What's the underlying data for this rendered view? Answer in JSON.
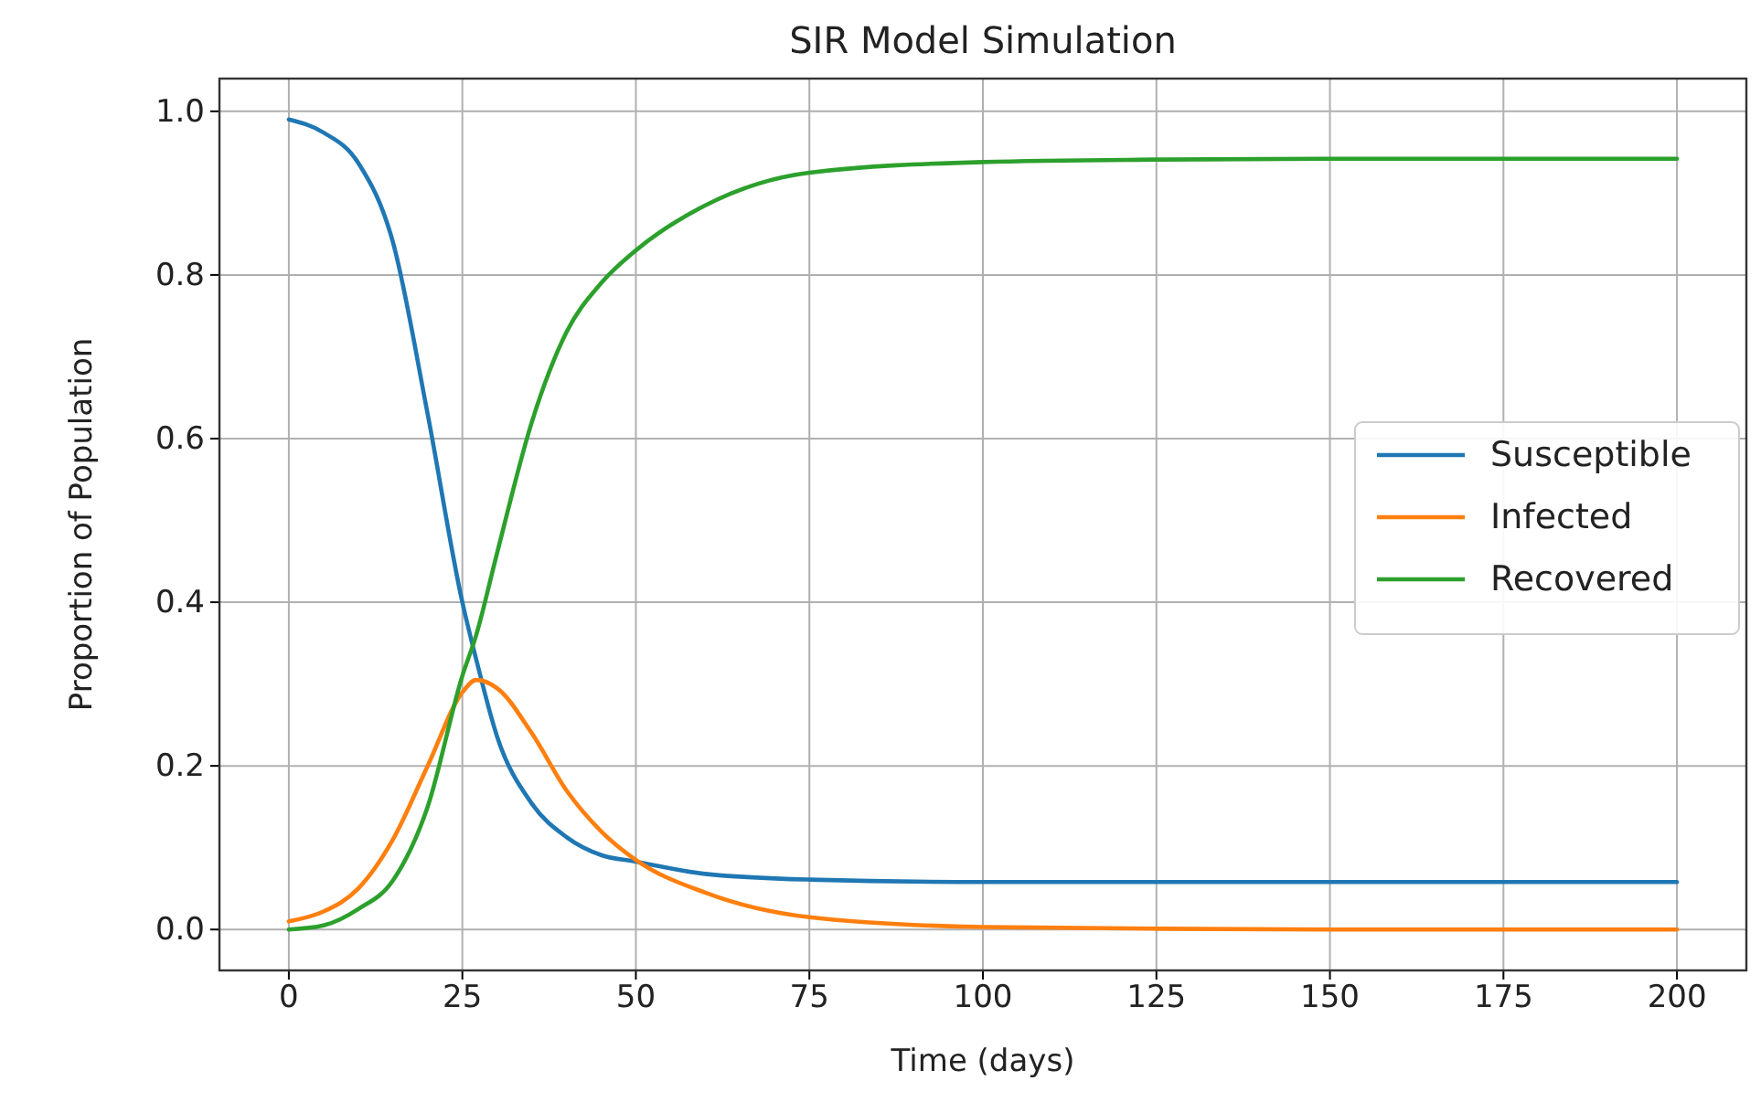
{
  "chart_data": {
    "type": "line",
    "title": "SIR Model Simulation",
    "xlabel": "Time (days)",
    "ylabel": "Proportion of Population",
    "x": [
      0,
      5,
      10,
      15,
      20,
      25,
      27,
      30,
      35,
      40,
      45,
      50,
      60,
      75,
      100,
      125,
      150,
      200
    ],
    "series": [
      {
        "name": "Susceptible",
        "color": "#1f77b4",
        "values": [
          0.99,
          0.974,
          0.937,
          0.84,
          0.63,
          0.4,
          0.33,
          0.236,
          0.154,
          0.113,
          0.091,
          0.083,
          0.068,
          0.061,
          0.058,
          0.058,
          0.058,
          0.058
        ]
      },
      {
        "name": "Infected",
        "color": "#ff7f0e",
        "values": [
          0.01,
          0.022,
          0.05,
          0.11,
          0.2,
          0.29,
          0.305,
          0.295,
          0.24,
          0.17,
          0.12,
          0.085,
          0.045,
          0.015,
          0.003,
          0.001,
          0,
          0
        ]
      },
      {
        "name": "Recovered",
        "color": "#2ca02c",
        "values": [
          0,
          0.005,
          0.025,
          0.06,
          0.15,
          0.31,
          0.36,
          0.46,
          0.62,
          0.73,
          0.79,
          0.83,
          0.885,
          0.925,
          0.938,
          0.941,
          0.942,
          0.942
        ]
      }
    ],
    "xlim": [
      -10,
      210
    ],
    "ylim": [
      -0.05,
      1.04
    ],
    "xticks": [
      0,
      25,
      50,
      75,
      100,
      125,
      150,
      175,
      200
    ],
    "yticks": [
      {
        "value": 0,
        "label": "0.0"
      },
      {
        "value": 0.2,
        "label": "0.2"
      },
      {
        "value": 0.4,
        "label": "0.4"
      },
      {
        "value": 0.6,
        "label": "0.6"
      },
      {
        "value": 0.8,
        "label": "0.8"
      },
      {
        "value": 1,
        "label": "1.0"
      }
    ],
    "grid": true,
    "legend": "center right"
  }
}
